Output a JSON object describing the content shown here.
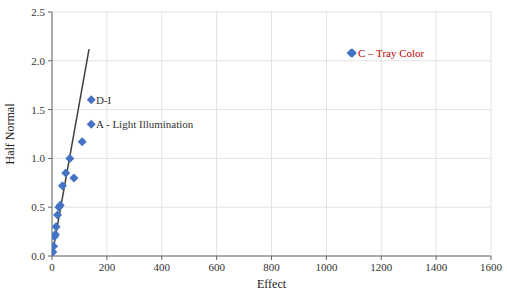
{
  "chart_data": {
    "type": "scatter",
    "xlabel": "Effect",
    "ylabel": "Half Normal",
    "xlim": [
      0,
      1600
    ],
    "ylim": [
      0,
      2.5
    ],
    "xticks": [
      0,
      200,
      400,
      600,
      800,
      1000,
      1200,
      1400,
      1600
    ],
    "yticks": [
      {
        "value": 0.0,
        "label": "0.0"
      },
      0.5,
      {
        "value": 1.0,
        "label": "1.0"
      },
      1.5,
      {
        "value": 2.0,
        "label": "2.0"
      },
      2.5
    ],
    "grid": true,
    "series": [
      {
        "type": "line",
        "color": "#404040",
        "x": [
          0,
          135
        ],
        "values": [
          0,
          2.12
        ]
      },
      {
        "type": "scatter",
        "marker": "diamond",
        "color": "#4472C4",
        "x": [
          3,
          6,
          9,
          12,
          15,
          20,
          25,
          30,
          38,
          50,
          65,
          80,
          110,
          1090
        ],
        "values": [
          0.04,
          0.1,
          0.2,
          0.22,
          0.3,
          0.42,
          0.5,
          0.52,
          0.72,
          0.85,
          1.0,
          0.8,
          1.17,
          2.08
        ]
      },
      {
        "type": "scatter",
        "marker": "diamond",
        "color": "#4472C4",
        "x": [
          143,
          143,
          1095
        ],
        "values": [
          1.6,
          1.35,
          2.08
        ]
      }
    ],
    "annotations": [
      {
        "text": "D-I",
        "x": 160,
        "y": 1.6,
        "color": "#333333"
      },
      {
        "text": "A - Light Illumination",
        "x": 160,
        "y": 1.35,
        "color": "#333333"
      },
      {
        "text": "C – Tray Color",
        "x": 1115,
        "y": 2.08,
        "color": "#C00000"
      }
    ]
  }
}
